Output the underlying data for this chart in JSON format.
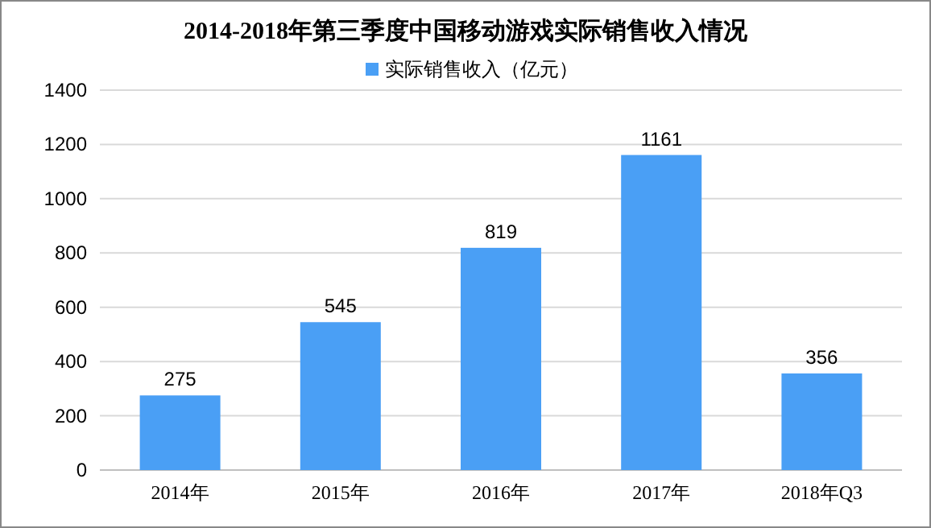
{
  "chart_data": {
    "type": "bar",
    "title": "2014-2018年第三季度中国移动游戏实际销售收入情况",
    "categories": [
      "2014年",
      "2015年",
      "2016年",
      "2017年",
      "2018年Q3"
    ],
    "series": [
      {
        "name": "实际销售收入（亿元）",
        "color": "#4a9ff5",
        "values": [
          275,
          545,
          819,
          1161,
          356
        ]
      }
    ],
    "ylim": [
      0,
      1400
    ],
    "yticks": [
      0,
      200,
      400,
      600,
      800,
      1000,
      1200,
      1400
    ],
    "grid": "y",
    "legend": "top",
    "data_labels": true
  }
}
